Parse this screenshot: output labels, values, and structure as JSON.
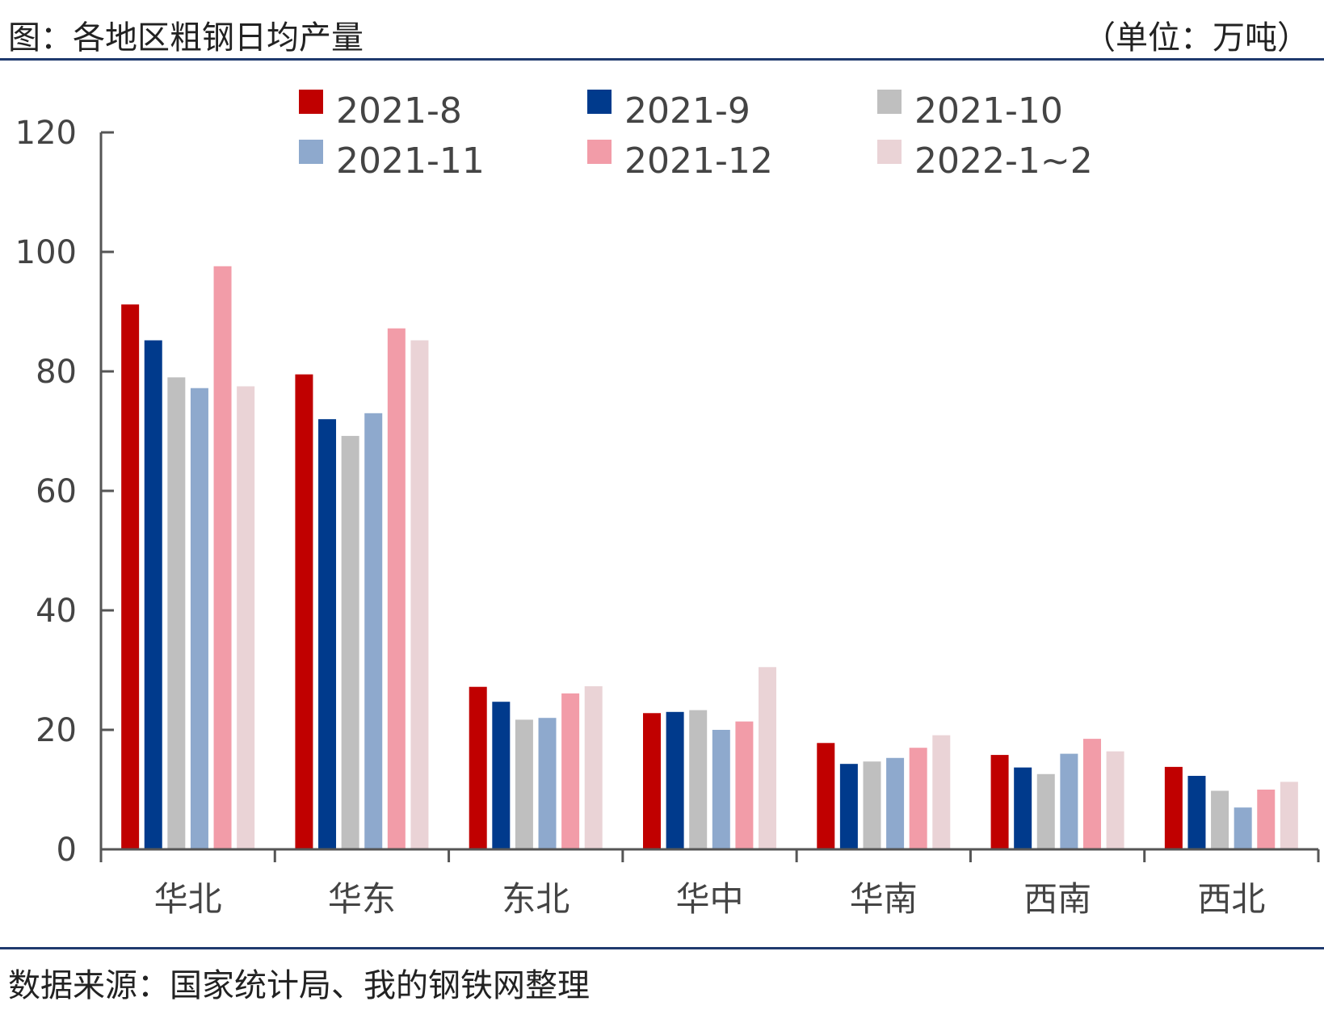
{
  "header": {
    "title": "图：各地区粗钢日均产量",
    "unit": "（单位：万吨）"
  },
  "footer": {
    "source": "数据来源：国家统计局、我的钢铁网整理"
  },
  "chart_data": {
    "type": "bar",
    "categories": [
      "华北",
      "华东",
      "东北",
      "华中",
      "华南",
      "西南",
      "西北"
    ],
    "ylim": [
      0,
      120
    ],
    "yticks": [
      0,
      20,
      40,
      60,
      80,
      100,
      120
    ],
    "legend_position": "top",
    "series": [
      {
        "name": "2021-8",
        "color": "#c00000",
        "values": [
          91.2,
          79.5,
          27.2,
          22.8,
          17.8,
          15.8,
          13.8
        ]
      },
      {
        "name": "2021-9",
        "color": "#003a8c",
        "values": [
          85.2,
          72.0,
          24.7,
          23.0,
          14.3,
          13.7,
          12.3
        ]
      },
      {
        "name": "2021-10",
        "color": "#bfbfbf",
        "values": [
          79.0,
          69.2,
          21.7,
          23.3,
          14.7,
          12.6,
          9.8
        ]
      },
      {
        "name": "2021-11",
        "color": "#8ea9cd",
        "values": [
          77.2,
          73.0,
          22.0,
          20.0,
          15.3,
          16.0,
          7.0
        ]
      },
      {
        "name": "2021-12",
        "color": "#f29ca8",
        "values": [
          97.6,
          87.2,
          26.1,
          21.4,
          17.0,
          18.5,
          10.0
        ]
      },
      {
        "name": "2022-1~2",
        "color": "#ead3d6",
        "values": [
          77.5,
          85.2,
          27.3,
          30.5,
          19.1,
          16.4,
          11.3
        ]
      }
    ]
  }
}
